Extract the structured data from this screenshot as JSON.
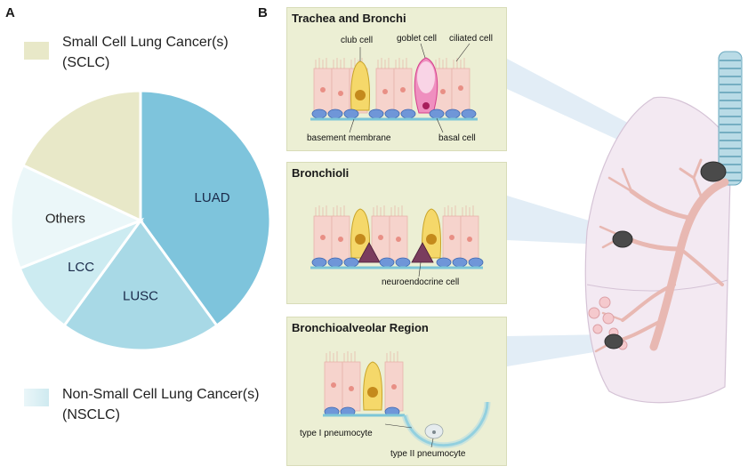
{
  "panels": {
    "a": "A",
    "b": "B"
  },
  "legend": {
    "sclc": {
      "line1": "Small Cell Lung Cancer(s)",
      "line2": "(SCLC)",
      "color": "#e8e8c8"
    },
    "nsclc": {
      "line1": "Non-Small Cell Lung Cancer(s)",
      "line2": "(NSCLC)",
      "color": "#cfeaf0"
    }
  },
  "chart_data": {
    "type": "pie",
    "title": "",
    "slices": [
      {
        "label": "LUAD",
        "value": 40,
        "color": "#7ec4dc"
      },
      {
        "label": "LUSC",
        "value": 20,
        "color": "#a8d9e6"
      },
      {
        "label": "LCC",
        "value": 9,
        "color": "#ccebf1"
      },
      {
        "label": "Others",
        "value": 13,
        "color": "#ebf7f9"
      },
      {
        "label": "",
        "value": 18,
        "color": "#e8e8c8"
      }
    ]
  },
  "boxes": {
    "trachea": {
      "title": "Trachea and Bronchi",
      "labels": {
        "club": "club  cell",
        "goblet": "goblet cell",
        "ciliated": "ciliated cell",
        "basement": "basement membrane",
        "basal": "basal cell"
      }
    },
    "bronchioli": {
      "title": "Bronchioli",
      "labels": {
        "neuro": "neuroendocrine cell"
      }
    },
    "alveolar": {
      "title": "Bronchioalveolar Region",
      "labels": {
        "type1": "type I pneumocyte",
        "type2": "type II pneumocyte"
      }
    }
  }
}
